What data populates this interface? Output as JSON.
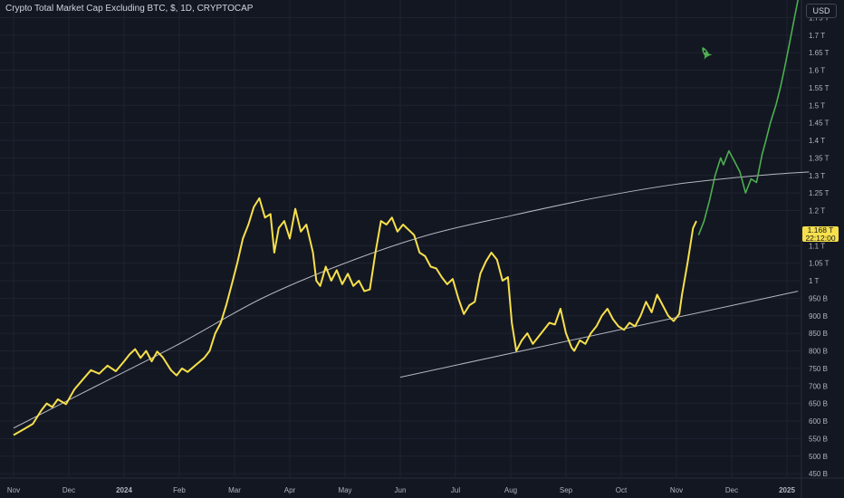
{
  "header": {
    "title": "Crypto Total Market Cap Excluding BTC, $, 1D, CRYPTOCAP",
    "currency": "USD"
  },
  "price_tag": {
    "value": "1.168 T",
    "countdown": "22:12:00"
  },
  "colors": {
    "background": "#131722",
    "grid": "#1f2330",
    "history_line": "#f7e04b",
    "projection_line": "#4caf50",
    "trendline": "#d1d4dc",
    "axis_text": "#b2b5be"
  },
  "icons": {
    "annotation": "rocket-icon"
  },
  "chart_data": {
    "type": "line",
    "title": "Crypto Total Market Cap Excluding BTC, $, 1D, CRYPTOCAP",
    "x_ticks": [
      "Nov",
      "Dec",
      "2024",
      "Feb",
      "Mar",
      "Apr",
      "May",
      "Jun",
      "Jul",
      "Aug",
      "Sep",
      "Oct",
      "Nov",
      "Dec",
      "2025"
    ],
    "y_ticks": [
      "1.75 T",
      "1.7 T",
      "1.65 T",
      "1.6 T",
      "1.55 T",
      "1.5 T",
      "1.45 T",
      "1.4 T",
      "1.35 T",
      "1.3 T",
      "1.25 T",
      "1.2 T",
      "1.1 T",
      "1.05 T",
      "1 T",
      "950 B",
      "900 B",
      "850 B",
      "800 B",
      "750 B",
      "700 B",
      "650 B",
      "600 B",
      "550 B",
      "500 B",
      "450 B"
    ],
    "y_unit": "B",
    "y_range": [
      440,
      1800
    ],
    "x_range": [
      0,
      14.3
    ],
    "grid": true,
    "series": [
      {
        "kind": "history",
        "points": [
          [
            0,
            560
          ],
          [
            0.2,
            578
          ],
          [
            0.35,
            592
          ],
          [
            0.5,
            630
          ],
          [
            0.6,
            650
          ],
          [
            0.7,
            640
          ],
          [
            0.8,
            662
          ],
          [
            0.95,
            648
          ],
          [
            1.1,
            690
          ],
          [
            1.25,
            718
          ],
          [
            1.4,
            745
          ],
          [
            1.55,
            735
          ],
          [
            1.7,
            758
          ],
          [
            1.85,
            742
          ],
          [
            2.0,
            770
          ],
          [
            2.1,
            790
          ],
          [
            2.2,
            805
          ],
          [
            2.3,
            780
          ],
          [
            2.4,
            800
          ],
          [
            2.5,
            770
          ],
          [
            2.6,
            798
          ],
          [
            2.7,
            782
          ],
          [
            2.85,
            745
          ],
          [
            2.95,
            730
          ],
          [
            3.05,
            750
          ],
          [
            3.15,
            740
          ],
          [
            3.3,
            760
          ],
          [
            3.45,
            780
          ],
          [
            3.55,
            800
          ],
          [
            3.65,
            850
          ],
          [
            3.75,
            880
          ],
          [
            3.85,
            930
          ],
          [
            3.95,
            990
          ],
          [
            4.05,
            1050
          ],
          [
            4.15,
            1120
          ],
          [
            4.25,
            1160
          ],
          [
            4.35,
            1210
          ],
          [
            4.45,
            1235
          ],
          [
            4.55,
            1180
          ],
          [
            4.65,
            1190
          ],
          [
            4.72,
            1080
          ],
          [
            4.8,
            1150
          ],
          [
            4.9,
            1170
          ],
          [
            5.0,
            1120
          ],
          [
            5.1,
            1205
          ],
          [
            5.2,
            1140
          ],
          [
            5.3,
            1160
          ],
          [
            5.42,
            1080
          ],
          [
            5.48,
            1000
          ],
          [
            5.55,
            985
          ],
          [
            5.65,
            1040
          ],
          [
            5.75,
            1000
          ],
          [
            5.85,
            1030
          ],
          [
            5.95,
            990
          ],
          [
            6.05,
            1020
          ],
          [
            6.15,
            985
          ],
          [
            6.25,
            1000
          ],
          [
            6.35,
            970
          ],
          [
            6.45,
            975
          ],
          [
            6.55,
            1080
          ],
          [
            6.65,
            1170
          ],
          [
            6.75,
            1160
          ],
          [
            6.85,
            1180
          ],
          [
            6.95,
            1140
          ],
          [
            7.05,
            1160
          ],
          [
            7.15,
            1145
          ],
          [
            7.25,
            1130
          ],
          [
            7.35,
            1080
          ],
          [
            7.45,
            1070
          ],
          [
            7.55,
            1040
          ],
          [
            7.65,
            1035
          ],
          [
            7.75,
            1010
          ],
          [
            7.85,
            990
          ],
          [
            7.95,
            1005
          ],
          [
            8.05,
            950
          ],
          [
            8.15,
            905
          ],
          [
            8.25,
            930
          ],
          [
            8.35,
            940
          ],
          [
            8.45,
            1020
          ],
          [
            8.55,
            1055
          ],
          [
            8.65,
            1080
          ],
          [
            8.75,
            1060
          ],
          [
            8.85,
            1000
          ],
          [
            8.95,
            1010
          ],
          [
            9.02,
            880
          ],
          [
            9.1,
            800
          ],
          [
            9.2,
            830
          ],
          [
            9.3,
            850
          ],
          [
            9.4,
            820
          ],
          [
            9.5,
            840
          ],
          [
            9.6,
            860
          ],
          [
            9.7,
            880
          ],
          [
            9.8,
            875
          ],
          [
            9.9,
            920
          ],
          [
            10.0,
            850
          ],
          [
            10.1,
            810
          ],
          [
            10.15,
            800
          ],
          [
            10.25,
            830
          ],
          [
            10.35,
            820
          ],
          [
            10.45,
            850
          ],
          [
            10.55,
            870
          ],
          [
            10.65,
            900
          ],
          [
            10.75,
            920
          ],
          [
            10.85,
            890
          ],
          [
            10.95,
            870
          ],
          [
            11.05,
            860
          ],
          [
            11.15,
            880
          ],
          [
            11.25,
            870
          ],
          [
            11.35,
            900
          ],
          [
            11.45,
            940
          ],
          [
            11.55,
            910
          ],
          [
            11.65,
            960
          ],
          [
            11.75,
            930
          ],
          [
            11.85,
            900
          ],
          [
            11.95,
            885
          ],
          [
            12.05,
            905
          ],
          [
            12.1,
            960
          ],
          [
            12.2,
            1050
          ],
          [
            12.3,
            1150
          ],
          [
            12.36,
            1170
          ]
        ]
      },
      {
        "kind": "projection",
        "points": [
          [
            12.4,
            1130
          ],
          [
            12.5,
            1170
          ],
          [
            12.6,
            1230
          ],
          [
            12.7,
            1300
          ],
          [
            12.8,
            1350
          ],
          [
            12.85,
            1330
          ],
          [
            12.95,
            1370
          ],
          [
            13.05,
            1340
          ],
          [
            13.15,
            1310
          ],
          [
            13.25,
            1250
          ],
          [
            13.35,
            1290
          ],
          [
            13.45,
            1280
          ],
          [
            13.55,
            1360
          ],
          [
            13.62,
            1400
          ],
          [
            13.7,
            1450
          ],
          [
            13.8,
            1500
          ],
          [
            13.88,
            1550
          ],
          [
            13.95,
            1600
          ],
          [
            14.05,
            1680
          ],
          [
            14.15,
            1760
          ],
          [
            14.2,
            1800
          ]
        ]
      }
    ],
    "trendlines": [
      {
        "kind": "curve",
        "points": [
          [
            0,
            580
          ],
          [
            1.5,
            700
          ],
          [
            3,
            820
          ],
          [
            4.5,
            950
          ],
          [
            6,
            1050
          ],
          [
            7.5,
            1130
          ],
          [
            9,
            1185
          ],
          [
            10.5,
            1235
          ],
          [
            12,
            1275
          ],
          [
            13.5,
            1300
          ],
          [
            14.4,
            1310
          ]
        ]
      },
      {
        "kind": "straight",
        "points": [
          [
            7.0,
            725
          ],
          [
            14.2,
            970
          ]
        ]
      }
    ]
  }
}
